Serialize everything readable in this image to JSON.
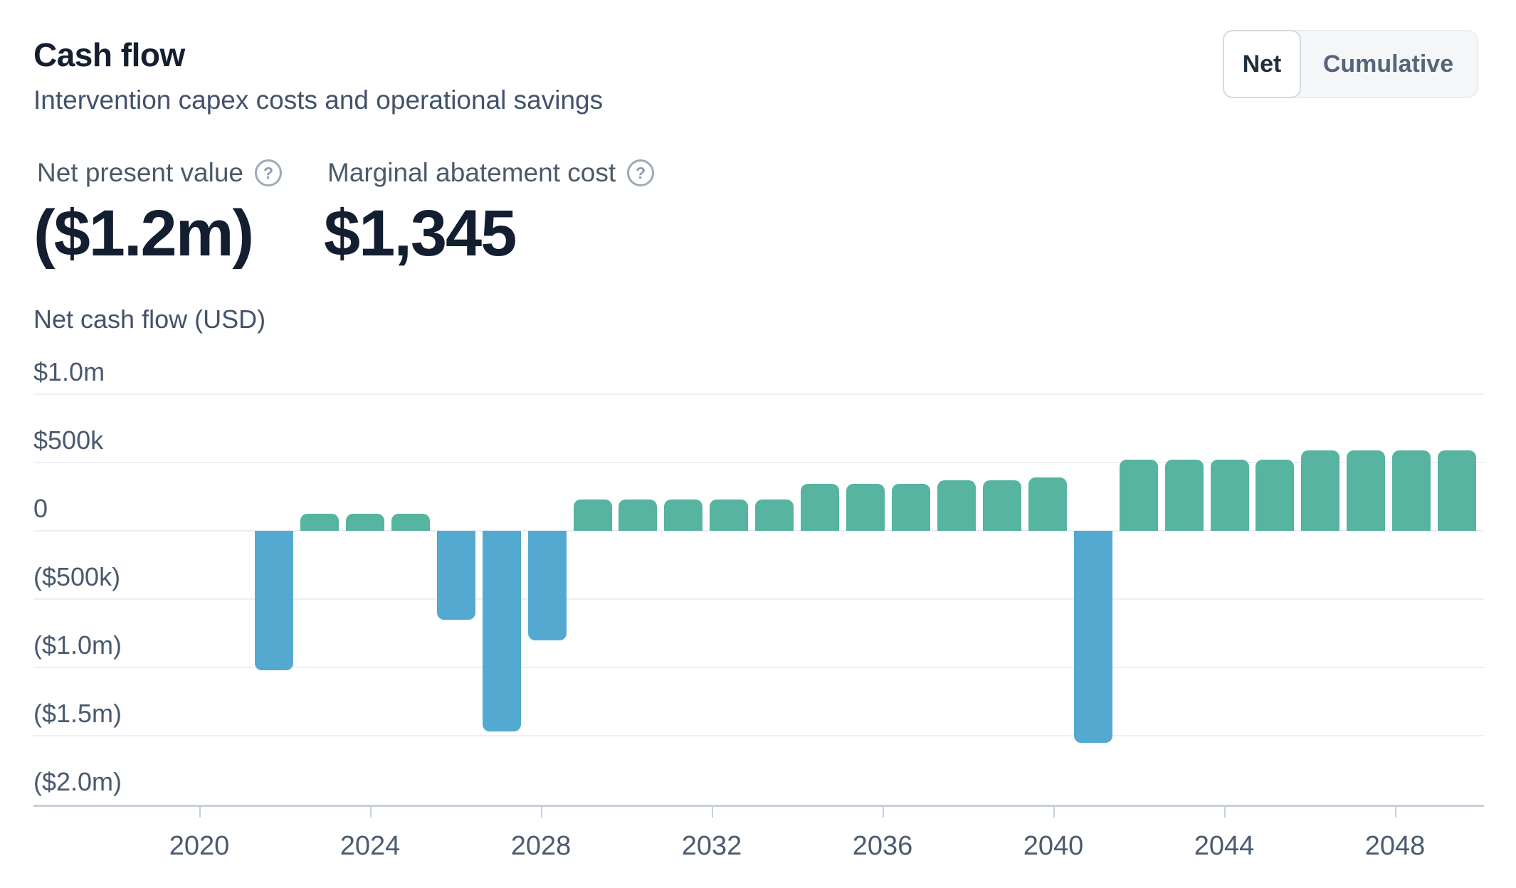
{
  "header": {
    "title": "Cash flow",
    "subtitle": "Intervention capex costs and operational savings",
    "toggle": {
      "options": [
        "Net",
        "Cumulative"
      ],
      "selected": "Net"
    }
  },
  "stats": [
    {
      "label": "Net present value",
      "value": "($1.2m)",
      "icon": "question-circle"
    },
    {
      "label": "Marginal abatement cost",
      "value": "$1,345",
      "icon": "question-circle"
    }
  ],
  "chart_data": {
    "type": "bar",
    "title": "Net cash flow (USD)",
    "ylabel": "Net cash flow (USD)",
    "xlabel": "",
    "ylim": [
      -2000000,
      1000000
    ],
    "grid": "horizontal",
    "colors": {
      "positive_bar": "#56b4a0",
      "negative_bar": "#54a9d0"
    },
    "y_ticks": [
      {
        "label": "$1.0m",
        "value": 1000000
      },
      {
        "label": "$500k",
        "value": 500000
      },
      {
        "label": "0",
        "value": 0
      },
      {
        "label": "($500k)",
        "value": -500000
      },
      {
        "label": "($1.0m)",
        "value": -1000000
      },
      {
        "label": "($1.5m)",
        "value": -1500000
      },
      {
        "label": "($2.0m)",
        "value": -2000000
      }
    ],
    "x_ticks": [
      2020,
      2024,
      2028,
      2032,
      2036,
      2040,
      2044,
      2048
    ],
    "categories": [
      2023,
      2024,
      2025,
      2026,
      2027,
      2028,
      2029,
      2030,
      2031,
      2032,
      2033,
      2034,
      2035,
      2036,
      2037,
      2038,
      2039,
      2040,
      2041,
      2042,
      2043,
      2044,
      2045,
      2046,
      2047,
      2048,
      2049
    ],
    "values": [
      -1020000,
      125000,
      125000,
      125000,
      -650000,
      -1470000,
      -800000,
      230000,
      230000,
      230000,
      230000,
      230000,
      345000,
      345000,
      345000,
      370000,
      370000,
      390000,
      -1550000,
      520000,
      520000,
      520000,
      520000,
      590000,
      590000,
      590000,
      590000
    ]
  }
}
